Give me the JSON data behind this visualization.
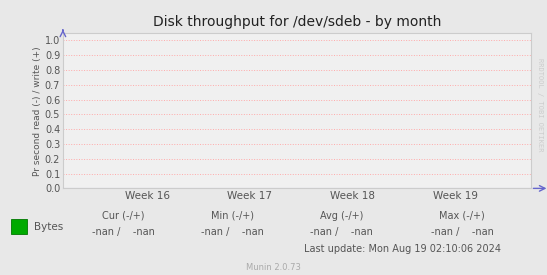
{
  "title": "Disk throughput for /dev/sdeb - by month",
  "ylabel": "Pr second read (-) / write (+)",
  "ylim": [
    0.0,
    1.05
  ],
  "yticks": [
    0.0,
    0.1,
    0.2,
    0.3,
    0.4,
    0.5,
    0.6,
    0.7,
    0.8,
    0.9,
    1.0
  ],
  "xtick_labels": [
    "Week 16",
    "Week 17",
    "Week 18",
    "Week 19"
  ],
  "xtick_positions": [
    0.18,
    0.4,
    0.62,
    0.84
  ],
  "bg_color": "#e8e8e8",
  "plot_bg_color": "#f0f0f0",
  "grid_color": "#ffaaaa",
  "spine_color": "#cccccc",
  "title_color": "#222222",
  "label_color": "#555555",
  "tick_color": "#555555",
  "watermark_text": "RRDTOOL / TOBI OETIKER",
  "watermark_color": "#cccccc",
  "legend_label": "Bytes",
  "legend_color": "#00aa00",
  "munin_text": "Munin 2.0.73",
  "munin_color": "#aaaaaa",
  "arrow_color": "#6666cc",
  "x_axis_line_color": "#aaaacc",
  "footer_label_color": "#555555"
}
